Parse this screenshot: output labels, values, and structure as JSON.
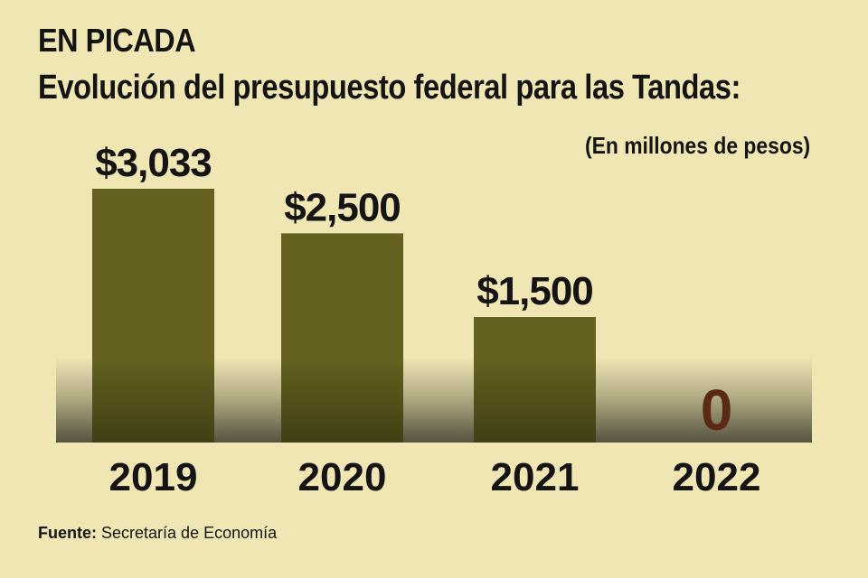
{
  "header": {
    "kicker": "EN PICADA",
    "title": "Evolución del presupuesto federal para las Tandas:",
    "unit": "(En millones de pesos)"
  },
  "source": {
    "label": "Fuente:",
    "text": "Secretaría de Economía"
  },
  "colors": {
    "background": "#efe6b4",
    "bar": "#646120",
    "zero_label": "#5a2a12",
    "text": "#141414"
  },
  "chart_data": {
    "type": "bar",
    "categories": [
      "2019",
      "2020",
      "2021",
      "2022"
    ],
    "values": [
      3033,
      2500,
      1500,
      0
    ],
    "value_labels": [
      "$3,033",
      "$2,500",
      "$1,500",
      "0"
    ],
    "title": "Evolución del presupuesto federal para las Tandas:",
    "ylabel": "",
    "xlabel": "",
    "ylim": [
      0,
      3033
    ],
    "grid": false,
    "legend": "none"
  }
}
